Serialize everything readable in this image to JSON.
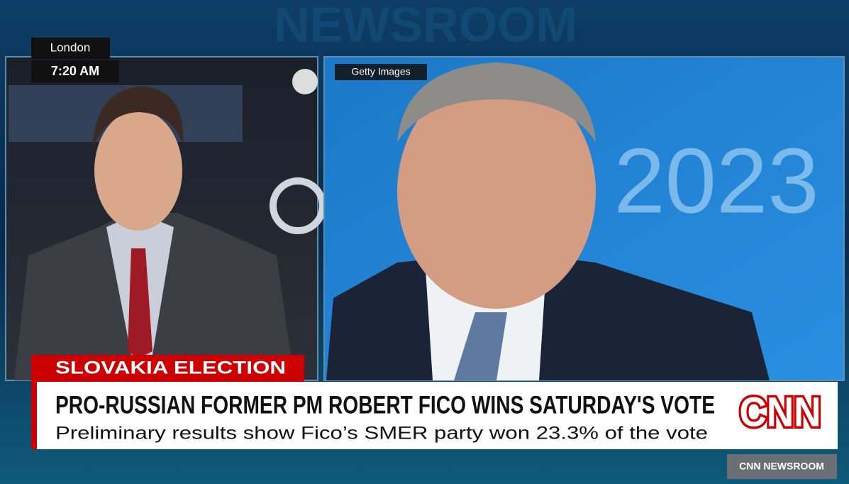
{
  "clock": {
    "city": "London",
    "time": "7:20 AM"
  },
  "credit": "Getty Images",
  "backdrop_text": "2023",
  "watermark": "NEWSROOM",
  "lower_third": {
    "tag": "SLOVAKIA ELECTION",
    "headline": "PRO-RUSSIAN FORMER PM ROBERT FICO WINS SATURDAY'S VOTE",
    "subheadline": "Preliminary results show Fico’s SMER party won 23.3% of the vote"
  },
  "logo": "CNN",
  "show": "CNN NEWSROOM"
}
